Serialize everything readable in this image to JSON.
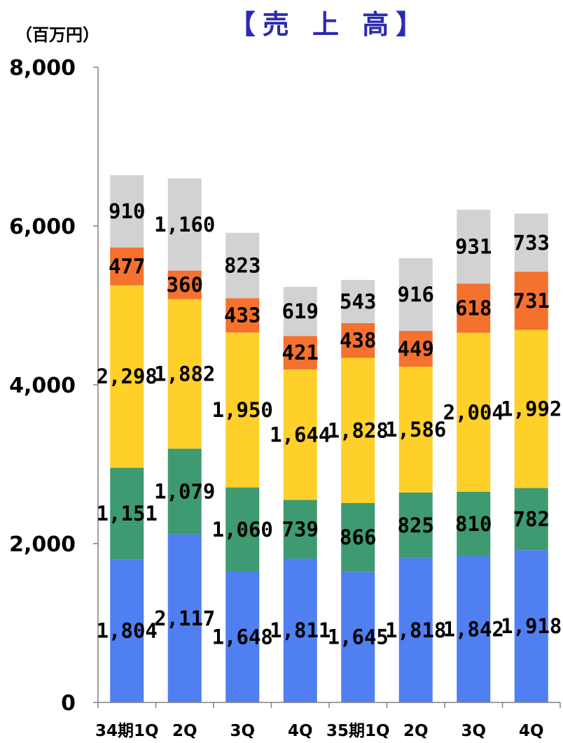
{
  "chart_data": {
    "type": "bar",
    "stacked": true,
    "title": "【売 上 高】",
    "unit_label": "（百万円）",
    "xlabel": "",
    "ylabel": "",
    "ylim": [
      0,
      8000
    ],
    "yticks": [
      0,
      2000,
      4000,
      6000,
      8000
    ],
    "ytick_labels": [
      "0",
      "2,000",
      "4,000",
      "6,000",
      "8,000"
    ],
    "grid": false,
    "legend": "none",
    "categories": [
      "34期1Q",
      "2Q",
      "3Q",
      "4Q",
      "35期1Q",
      "2Q",
      "3Q",
      "4Q"
    ],
    "series": [
      {
        "color": "#4f7ff0",
        "values": [
          1804,
          2117,
          1648,
          1811,
          1645,
          1818,
          1842,
          1918
        ],
        "labels": [
          "1,804",
          "2,117",
          "1,648",
          "1,811",
          "1,645",
          "1,818",
          "1,842",
          "1,918"
        ]
      },
      {
        "color": "#3e9a70",
        "values": [
          1151,
          1079,
          1060,
          739,
          866,
          825,
          810,
          782
        ],
        "labels": [
          "1,151",
          "1,079",
          "1,060",
          "739",
          "866",
          "825",
          "810",
          "782"
        ]
      },
      {
        "color": "#ffcf2a",
        "values": [
          2298,
          1882,
          1950,
          1644,
          1828,
          1586,
          2004,
          1992
        ],
        "labels": [
          "2,298",
          "1,882",
          "1,950",
          "1,644",
          "1,828",
          "1,586",
          "2,004",
          "1,992"
        ]
      },
      {
        "color": "#f4712e",
        "values": [
          477,
          360,
          433,
          421,
          438,
          449,
          618,
          731
        ],
        "labels": [
          "477",
          "360",
          "433",
          "421",
          "438",
          "449",
          "618",
          "731"
        ]
      },
      {
        "color": "#d2d2d2",
        "values": [
          910,
          1160,
          823,
          619,
          543,
          916,
          931,
          733
        ],
        "labels": [
          "910",
          "1,160",
          "823",
          "619",
          "543",
          "916",
          "931",
          "733"
        ]
      }
    ]
  }
}
